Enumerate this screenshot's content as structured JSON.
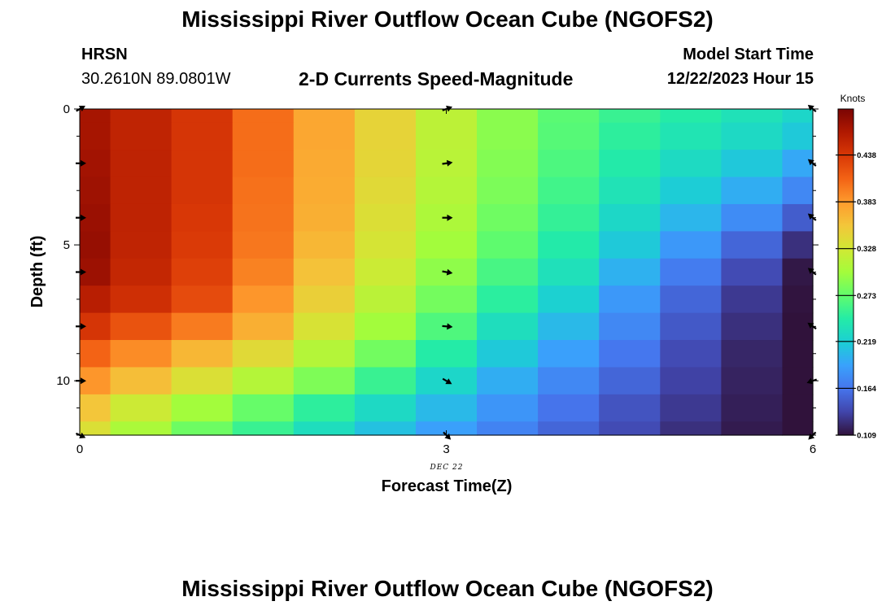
{
  "header": {
    "title": "Mississippi River Outflow Ocean Cube (NGOFS2)",
    "station_code": "HRSN",
    "station_coords": "30.2610N  89.0801W",
    "subtitle": "2-D Currents Speed-Magnitude",
    "model_start_label": "Model Start Time",
    "model_start_value": "12/22/2023 Hour 15"
  },
  "footer": {
    "title": "Mississippi River Outflow Ocean Cube (NGOFS2)"
  },
  "chart_data": {
    "type": "heatmap",
    "title": "2-D Currents Speed-Magnitude",
    "xlabel": "Forecast Time(Z)",
    "ylabel": "Depth (ft)",
    "x_date_label": "DEC 22",
    "xlim": [
      0,
      6
    ],
    "ylim": [
      12,
      0
    ],
    "x_ticks": [
      0,
      3,
      6
    ],
    "y_ticks": [
      0,
      5,
      10
    ],
    "units": "Knots",
    "colorbar": {
      "min": 0.109,
      "max": 0.492,
      "tick_values": [
        0.109,
        0.164,
        0.219,
        0.273,
        0.328,
        0.383,
        0.438
      ],
      "tick_labels": [
        "0.109",
        "0.164",
        "0.219",
        "0.273",
        "0.328",
        "0.383",
        "0.438"
      ],
      "colors": [
        "#30123b",
        "#4145ab",
        "#4675ed",
        "#39a2fc",
        "#1bcfd4",
        "#24eca6",
        "#61fc6c",
        "#a4fc3b",
        "#d1e834",
        "#f3c63a",
        "#fe9b2d",
        "#f36315",
        "#d93806",
        "#b11901",
        "#7a0403"
      ]
    },
    "times": [
      0,
      0.5,
      1,
      1.5,
      2,
      2.5,
      3,
      3.5,
      4,
      4.5,
      5,
      5.5,
      6
    ],
    "depths": [
      0,
      1,
      2,
      3,
      4,
      5,
      6,
      7,
      8,
      9,
      10,
      11,
      12
    ],
    "speeds": [
      [
        0.47,
        0.455,
        0.44,
        0.405,
        0.375,
        0.345,
        0.315,
        0.29,
        0.27,
        0.255,
        0.245,
        0.235,
        0.225
      ],
      [
        0.47,
        0.455,
        0.44,
        0.405,
        0.375,
        0.345,
        0.315,
        0.29,
        0.268,
        0.25,
        0.238,
        0.228,
        0.215
      ],
      [
        0.472,
        0.456,
        0.44,
        0.405,
        0.373,
        0.343,
        0.313,
        0.287,
        0.264,
        0.244,
        0.229,
        0.214,
        0.195
      ],
      [
        0.474,
        0.456,
        0.44,
        0.403,
        0.372,
        0.34,
        0.31,
        0.284,
        0.259,
        0.236,
        0.217,
        0.198,
        0.175
      ],
      [
        0.476,
        0.456,
        0.438,
        0.402,
        0.37,
        0.336,
        0.306,
        0.279,
        0.253,
        0.226,
        0.203,
        0.178,
        0.15
      ],
      [
        0.478,
        0.455,
        0.436,
        0.4,
        0.365,
        0.331,
        0.3,
        0.272,
        0.244,
        0.215,
        0.185,
        0.155,
        0.125
      ],
      [
        0.475,
        0.452,
        0.432,
        0.395,
        0.358,
        0.324,
        0.292,
        0.262,
        0.234,
        0.2,
        0.168,
        0.14,
        0.112
      ],
      [
        0.46,
        0.445,
        0.425,
        0.385,
        0.348,
        0.314,
        0.281,
        0.249,
        0.22,
        0.185,
        0.155,
        0.13,
        0.11
      ],
      [
        0.44,
        0.42,
        0.398,
        0.37,
        0.333,
        0.3,
        0.265,
        0.232,
        0.205,
        0.175,
        0.148,
        0.125,
        0.109
      ],
      [
        0.41,
        0.39,
        0.365,
        0.34,
        0.31,
        0.28,
        0.245,
        0.215,
        0.19,
        0.165,
        0.14,
        0.12,
        0.109
      ],
      [
        0.385,
        0.36,
        0.335,
        0.31,
        0.285,
        0.255,
        0.225,
        0.198,
        0.175,
        0.155,
        0.135,
        0.118,
        0.109
      ],
      [
        0.355,
        0.325,
        0.3,
        0.275,
        0.25,
        0.228,
        0.205,
        0.183,
        0.163,
        0.145,
        0.13,
        0.116,
        0.109
      ],
      [
        0.335,
        0.305,
        0.278,
        0.255,
        0.232,
        0.21,
        0.19,
        0.172,
        0.155,
        0.14,
        0.125,
        0.114,
        0.109
      ]
    ],
    "vectors": [
      {
        "time": 0,
        "depth": 0,
        "dir": 30
      },
      {
        "time": 0,
        "depth": 2,
        "dir": 0
      },
      {
        "time": 0,
        "depth": 4,
        "dir": 0
      },
      {
        "time": 0,
        "depth": 6,
        "dir": 0
      },
      {
        "time": 0,
        "depth": 8,
        "dir": 0
      },
      {
        "time": 0,
        "depth": 10,
        "dir": 0
      },
      {
        "time": 0,
        "depth": 12,
        "dir": -25
      },
      {
        "time": 3,
        "depth": 0,
        "dir": 20
      },
      {
        "time": 3,
        "depth": 2,
        "dir": 8
      },
      {
        "time": 3,
        "depth": 4,
        "dir": 0
      },
      {
        "time": 3,
        "depth": 6,
        "dir": -10
      },
      {
        "time": 3,
        "depth": 8,
        "dir": -5
      },
      {
        "time": 3,
        "depth": 10,
        "dir": -30
      },
      {
        "time": 3,
        "depth": 12,
        "dir": -45
      },
      {
        "time": 6,
        "depth": 0,
        "dir": 140
      },
      {
        "time": 6,
        "depth": 2,
        "dir": 140
      },
      {
        "time": 6,
        "depth": 4,
        "dir": 140
      },
      {
        "time": 6,
        "depth": 6,
        "dir": 140
      },
      {
        "time": 6,
        "depth": 8,
        "dir": 145
      },
      {
        "time": 6,
        "depth": 10,
        "dir": 200
      },
      {
        "time": 6,
        "depth": 12,
        "dir": 225
      }
    ]
  }
}
